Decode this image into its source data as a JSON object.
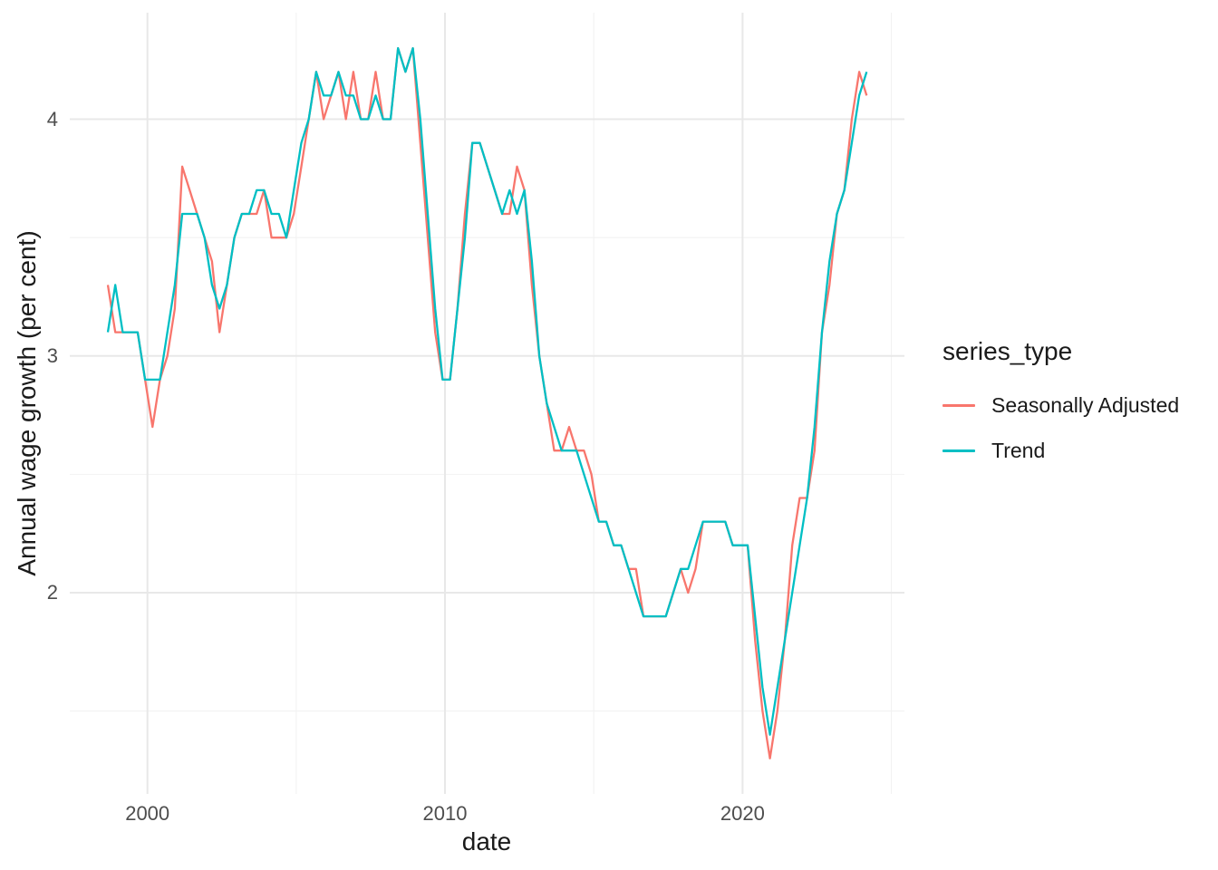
{
  "figure": {
    "xlabel": "date",
    "ylabel": "Annual wage growth (per cent)",
    "legend_title": "series_type"
  },
  "colors": {
    "background": "#ffffff",
    "grid_major": "#e8e8e8",
    "grid_minor": "#f2f2f2",
    "tick_text": "#4d4d4d",
    "title_text": "#1a1a1a",
    "seasonally_adjusted": "#F8766D",
    "trend": "#00BFC4"
  },
  "chart_data": {
    "type": "line",
    "title": "",
    "xlabel": "date",
    "ylabel": "Annual wage growth (per cent)",
    "legend_position": "right",
    "legend_title": "series_type",
    "grid": "major and minor light-grey gridlines on white panel (ggplot theme_minimal)",
    "x_unit": "quarterly observations (decimal years)",
    "start_year": 1998,
    "start_quarter": 3,
    "xlim": [
      1997.39,
      2025.44
    ],
    "ylim": [
      1.15,
      4.45
    ],
    "x_ticks": {
      "major": [
        2000,
        2010,
        2020
      ],
      "labels": [
        "2000",
        "2010",
        "2020"
      ],
      "minor": [
        2005,
        2015,
        2025
      ]
    },
    "y_ticks": {
      "major": [
        2,
        3,
        4
      ],
      "labels": [
        "2",
        "3",
        "4"
      ],
      "minor": [
        1.5,
        2.5,
        3.5
      ]
    },
    "series": [
      {
        "name": "Seasonally Adjusted",
        "color": "#F8766D",
        "values": [
          3.3,
          3.1,
          3.1,
          3.1,
          3.1,
          2.9,
          2.7,
          2.9,
          3.0,
          3.2,
          3.8,
          3.7,
          3.6,
          3.5,
          3.4,
          3.1,
          3.3,
          3.5,
          3.6,
          3.6,
          3.6,
          3.7,
          3.5,
          3.5,
          3.5,
          3.6,
          3.8,
          4.0,
          4.2,
          4.0,
          4.1,
          4.2,
          4.0,
          4.2,
          4.0,
          4.0,
          4.2,
          4.0,
          4.0,
          4.3,
          4.2,
          4.3,
          3.9,
          3.5,
          3.1,
          2.9,
          2.9,
          3.2,
          3.6,
          3.9,
          3.9,
          3.8,
          3.7,
          3.6,
          3.6,
          3.8,
          3.7,
          3.3,
          3.0,
          2.8,
          2.6,
          2.6,
          2.7,
          2.6,
          2.6,
          2.5,
          2.3,
          2.3,
          2.2,
          2.2,
          2.1,
          2.1,
          1.9,
          1.9,
          1.9,
          1.9,
          2.0,
          2.1,
          2.0,
          2.1,
          2.3,
          2.3,
          2.3,
          2.3,
          2.2,
          2.2,
          2.2,
          1.8,
          1.5,
          1.3,
          1.5,
          1.8,
          2.2,
          2.4,
          2.4,
          2.6,
          3.1,
          3.3,
          3.6,
          3.7,
          4.0,
          4.2,
          4.1
        ]
      },
      {
        "name": "Trend",
        "color": "#00BFC4",
        "values": [
          3.1,
          3.3,
          3.1,
          3.1,
          3.1,
          2.9,
          2.9,
          2.9,
          3.1,
          3.3,
          3.6,
          3.6,
          3.6,
          3.5,
          3.3,
          3.2,
          3.3,
          3.5,
          3.6,
          3.6,
          3.7,
          3.7,
          3.6,
          3.6,
          3.5,
          3.7,
          3.9,
          4.0,
          4.2,
          4.1,
          4.1,
          4.2,
          4.1,
          4.1,
          4.0,
          4.0,
          4.1,
          4.0,
          4.0,
          4.3,
          4.2,
          4.3,
          4.0,
          3.6,
          3.2,
          2.9,
          2.9,
          3.2,
          3.5,
          3.9,
          3.9,
          3.8,
          3.7,
          3.6,
          3.7,
          3.6,
          3.7,
          3.4,
          3.0,
          2.8,
          2.7,
          2.6,
          2.6,
          2.6,
          2.5,
          2.4,
          2.3,
          2.3,
          2.2,
          2.2,
          2.1,
          2.0,
          1.9,
          1.9,
          1.9,
          1.9,
          2.0,
          2.1,
          2.1,
          2.2,
          2.3,
          2.3,
          2.3,
          2.3,
          2.2,
          2.2,
          2.2,
          1.9,
          1.6,
          1.4,
          1.6,
          1.8,
          2.0,
          2.2,
          2.4,
          2.7,
          3.1,
          3.4,
          3.6,
          3.7,
          3.9,
          4.1,
          4.2
        ]
      }
    ]
  }
}
